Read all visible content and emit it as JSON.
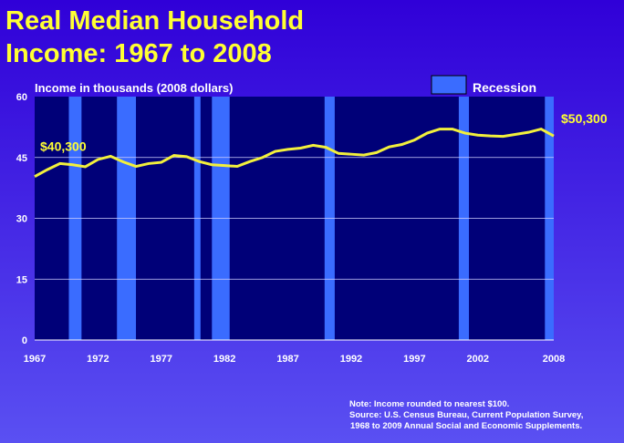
{
  "chart_data": {
    "type": "line",
    "title_lines": [
      "Real Median Household",
      "Income:  1967 to 2008"
    ],
    "y_label": "Income in thousands (2008 dollars)",
    "x": [
      1967,
      1968,
      1969,
      1970,
      1971,
      1972,
      1973,
      1974,
      1975,
      1976,
      1977,
      1978,
      1979,
      1980,
      1981,
      1982,
      1983,
      1984,
      1985,
      1986,
      1987,
      1988,
      1989,
      1990,
      1991,
      1992,
      1993,
      1994,
      1995,
      1996,
      1997,
      1998,
      1999,
      2000,
      2001,
      2002,
      2003,
      2004,
      2005,
      2006,
      2007,
      2008
    ],
    "series": [
      {
        "name": "Median household income",
        "color": "#f2f03c",
        "values": [
          40.3,
          42.0,
          43.5,
          43.2,
          42.7,
          44.5,
          45.3,
          43.9,
          42.8,
          43.5,
          43.8,
          45.5,
          45.2,
          44.0,
          43.2,
          43.0,
          42.8,
          44.0,
          45.0,
          46.5,
          47.0,
          47.3,
          48.0,
          47.5,
          46.0,
          45.8,
          45.6,
          46.2,
          47.6,
          48.2,
          49.3,
          51.0,
          52.0,
          52.0,
          51.0,
          50.5,
          50.3,
          50.2,
          50.7,
          51.2,
          52.0,
          50.3
        ]
      }
    ],
    "recessions": {
      "name": "Recession",
      "color": "#3a6cff",
      "spans": [
        [
          1969.7,
          1970.7
        ],
        [
          1973.5,
          1975.0
        ],
        [
          1979.6,
          1980.1
        ],
        [
          1981.0,
          1982.4
        ],
        [
          1989.9,
          1990.7
        ],
        [
          2000.5,
          2001.3
        ],
        [
          2007.3,
          2008
        ]
      ]
    },
    "annotations": [
      {
        "text": "$40,300",
        "x": 1967,
        "y": 40.3
      },
      {
        "text": "$50,300",
        "x": 2008,
        "y": 50.3
      }
    ],
    "xlim": [
      1967,
      2008
    ],
    "xticks": [
      1967,
      1972,
      1977,
      1982,
      1987,
      1992,
      1997,
      2002,
      2008
    ],
    "ylim": [
      0,
      60
    ],
    "yticks": [
      0,
      15,
      30,
      45,
      60
    ],
    "grid": true,
    "notes": [
      "Note:  Income rounded to nearest $100.",
      "Source:  U.S. Census Bureau, Current Population Survey,",
      "1968 to 2009 Annual Social and Economic Supplements."
    ]
  }
}
